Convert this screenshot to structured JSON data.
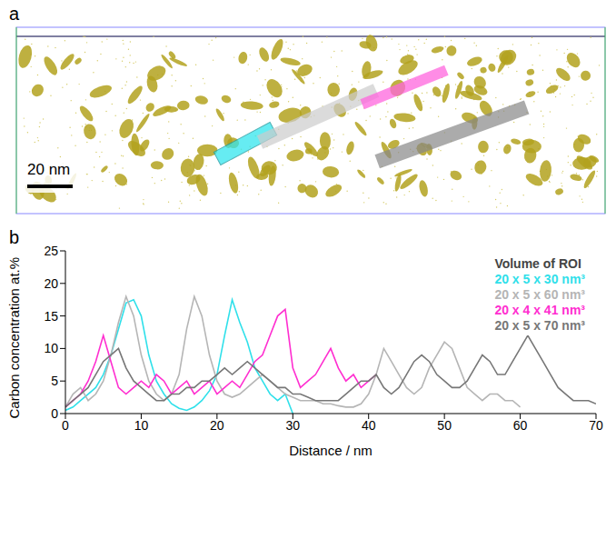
{
  "panel_a": {
    "label": "a",
    "scale_bar": "20 nm"
  },
  "chart_data": {
    "type": "line",
    "panel_label": "b",
    "x_label": "Distance / nm",
    "y_label": "Carbon concentration at.%",
    "xlim": [
      0,
      70
    ],
    "xticks": [
      0,
      10,
      20,
      30,
      40,
      50,
      60,
      70
    ],
    "ylim": [
      0,
      25
    ],
    "yticks": [
      0,
      5,
      10,
      15,
      20,
      25
    ],
    "grid": false,
    "legend": "top-right",
    "legend_title": "Volume of ROI",
    "series": [
      {
        "name": "20 x 5 x 30 nm³",
        "color": "#2fe0ea",
        "x": [
          0,
          1,
          2,
          3,
          4,
          5,
          6,
          7,
          8,
          9,
          10,
          11,
          12,
          13,
          14,
          15,
          16,
          17,
          18,
          19,
          20,
          21,
          22,
          23,
          24,
          25,
          26,
          27,
          28,
          29,
          30
        ],
        "values": [
          0.5,
          1,
          2,
          3,
          4,
          6,
          9,
          13,
          17,
          17.5,
          15,
          9,
          5,
          3,
          1.5,
          0.8,
          0.5,
          1,
          2,
          3.5,
          6,
          12,
          17.5,
          14,
          11,
          7,
          5,
          3,
          2,
          3,
          0
        ]
      },
      {
        "name": "20 x 5 x 60 nm³",
        "color": "#b5b5b5",
        "x": [
          0,
          1,
          2,
          3,
          4,
          5,
          6,
          7,
          8,
          9,
          10,
          11,
          12,
          13,
          14,
          15,
          16,
          17,
          18,
          19,
          20,
          21,
          22,
          23,
          24,
          25,
          26,
          27,
          28,
          29,
          30,
          31,
          32,
          33,
          34,
          35,
          36,
          37,
          38,
          39,
          40,
          41,
          42,
          43,
          44,
          45,
          46,
          47,
          48,
          49,
          50,
          51,
          52,
          53,
          54,
          55,
          56,
          57,
          58,
          59,
          60
        ],
        "values": [
          1,
          3,
          4,
          2,
          3,
          5,
          9,
          14,
          18,
          15,
          9,
          5,
          3,
          2,
          3,
          6,
          13,
          18,
          15,
          9,
          5,
          3,
          2.5,
          3,
          4,
          5,
          6,
          5,
          4,
          3,
          2.5,
          2,
          2,
          2,
          1.5,
          1.5,
          1.2,
          1,
          1,
          1.5,
          3,
          6,
          10,
          8,
          6,
          4,
          3,
          4,
          7,
          9,
          11,
          10,
          7,
          4,
          3,
          2,
          3,
          3,
          2,
          2,
          1
        ]
      },
      {
        "name": "20 x 4 x 41 nm³",
        "color": "#ff2ed0",
        "x": [
          0,
          1,
          2,
          3,
          4,
          5,
          6,
          7,
          8,
          9,
          10,
          11,
          12,
          13,
          14,
          15,
          16,
          17,
          18,
          19,
          20,
          21,
          22,
          23,
          24,
          25,
          26,
          27,
          28,
          29,
          30,
          31,
          32,
          33,
          34,
          35,
          36,
          37,
          38,
          39,
          40,
          41
        ],
        "values": [
          1,
          2,
          3,
          5,
          8,
          12,
          8,
          4,
          3,
          4,
          5,
          4,
          6,
          5,
          3,
          4,
          5,
          3,
          4,
          5,
          3,
          4,
          5,
          4,
          6,
          8,
          9,
          12,
          15,
          16,
          7,
          4,
          5,
          6,
          8,
          10,
          7,
          5,
          6,
          4,
          5,
          6
        ]
      },
      {
        "name": "20 x 5 x 70 nm³",
        "color": "#777777",
        "x": [
          0,
          1,
          2,
          3,
          4,
          5,
          6,
          7,
          8,
          9,
          10,
          11,
          12,
          13,
          14,
          15,
          16,
          17,
          18,
          19,
          20,
          21,
          22,
          23,
          24,
          25,
          26,
          27,
          28,
          29,
          30,
          31,
          32,
          33,
          34,
          35,
          36,
          37,
          38,
          39,
          40,
          41,
          42,
          43,
          44,
          45,
          46,
          47,
          48,
          49,
          50,
          51,
          52,
          53,
          54,
          55,
          56,
          57,
          58,
          59,
          60,
          61,
          62,
          63,
          64,
          65,
          66,
          67,
          68,
          69,
          70
        ],
        "values": [
          1,
          2,
          3,
          4,
          6,
          8,
          9,
          10,
          7,
          5,
          4,
          3,
          2,
          2,
          3,
          3,
          4,
          4,
          5,
          5,
          6,
          7,
          6,
          7,
          8,
          7,
          6,
          5,
          4,
          4,
          3,
          3,
          2.5,
          2,
          2,
          2,
          2,
          3,
          4,
          5,
          5,
          6,
          4,
          3,
          4,
          6,
          8,
          9,
          8,
          6,
          5,
          4,
          4,
          5,
          7,
          9,
          8,
          6,
          6,
          8,
          10,
          12,
          10,
          8,
          6,
          4,
          3,
          2,
          2,
          2,
          1.5
        ]
      }
    ]
  }
}
